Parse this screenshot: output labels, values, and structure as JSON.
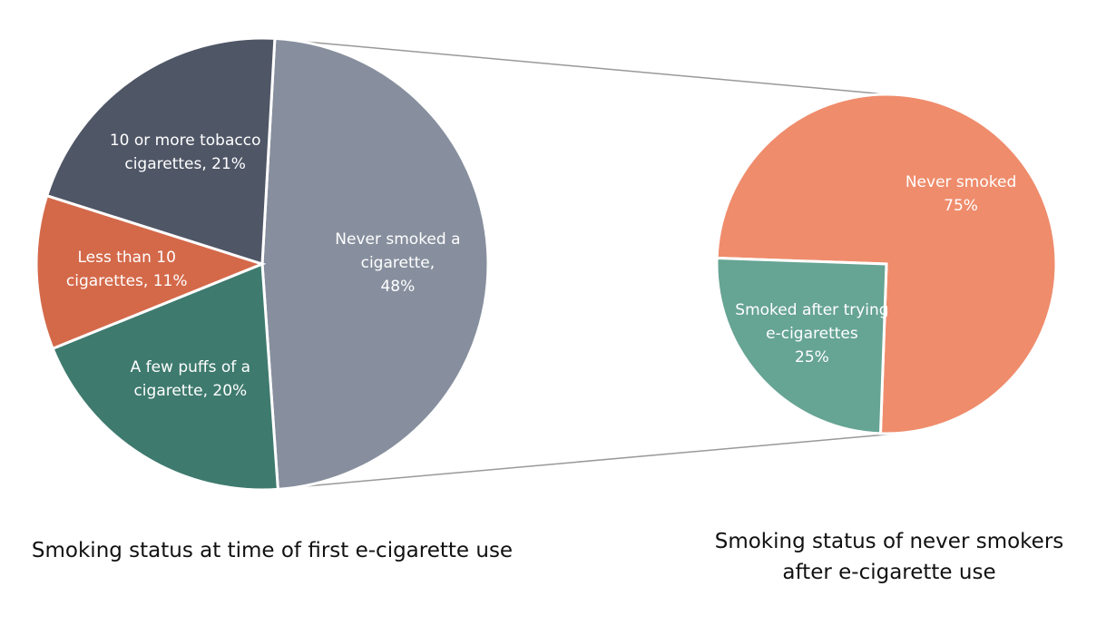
{
  "chart_data": [
    {
      "type": "pie",
      "title": "Smoking status at time of first e-cigarette use",
      "categories": [
        "Never smoked a cigarette,",
        "A few puffs of a cigarette,",
        "Less than 10 cigarettes,",
        "10 or more tobacco cigarettes,"
      ],
      "values": [
        48,
        20,
        11,
        21
      ],
      "value_labels": [
        "48%",
        "20%",
        "11%",
        "21%"
      ],
      "colors": [
        "#878f9e",
        "#3e7a6e",
        "#d4694a",
        "#4f5666"
      ]
    },
    {
      "type": "pie",
      "title": "Smoking status of never smokers after e-cigarette use",
      "categories": [
        "Never smoked",
        "Smoked after trying e-cigarettes"
      ],
      "values": [
        75,
        25
      ],
      "value_labels": [
        "75%",
        "25%"
      ],
      "colors": [
        "#ef8c6c",
        "#66a494"
      ]
    }
  ]
}
